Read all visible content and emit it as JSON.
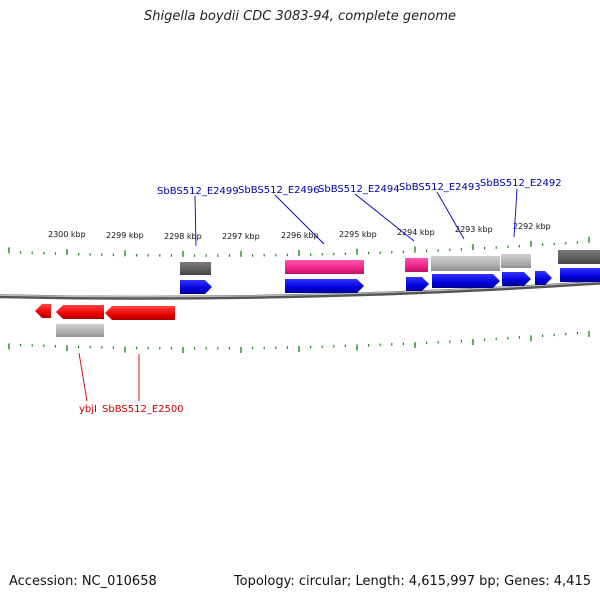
{
  "title": "Shigella boydii CDC 3083-94, complete genome",
  "footer": {
    "accession": "Accession: NC_010658",
    "summary": "Topology: circular; Length: 4,615,997 bp; Genes: 4,415"
  },
  "colors": {
    "forward_cds": "#0000ee",
    "reverse_cds": "#ee0000",
    "rna": "#ee2288",
    "gene_dark": "#666666",
    "gene_light": "#b5b5b5",
    "tick": "#228822",
    "backbone": "#888888",
    "label_forward": "#0000aa",
    "label_reverse": "#cc0000"
  },
  "tick_labels": [
    "2300 kbp",
    "2299 kbp",
    "2298 kbp",
    "2297 kbp",
    "2296 kbp",
    "2295 kbp",
    "2294 kbp",
    "2293 kbp",
    "2292 kbp"
  ],
  "forward_labels": [
    "SbBS512_E2499",
    "SbBS512_E2496",
    "SbBS512_E2494",
    "SbBS512_E2493",
    "SbBS512_E2492"
  ],
  "reverse_labels": [
    "ybjI",
    "SbBS512_E2500"
  ]
}
